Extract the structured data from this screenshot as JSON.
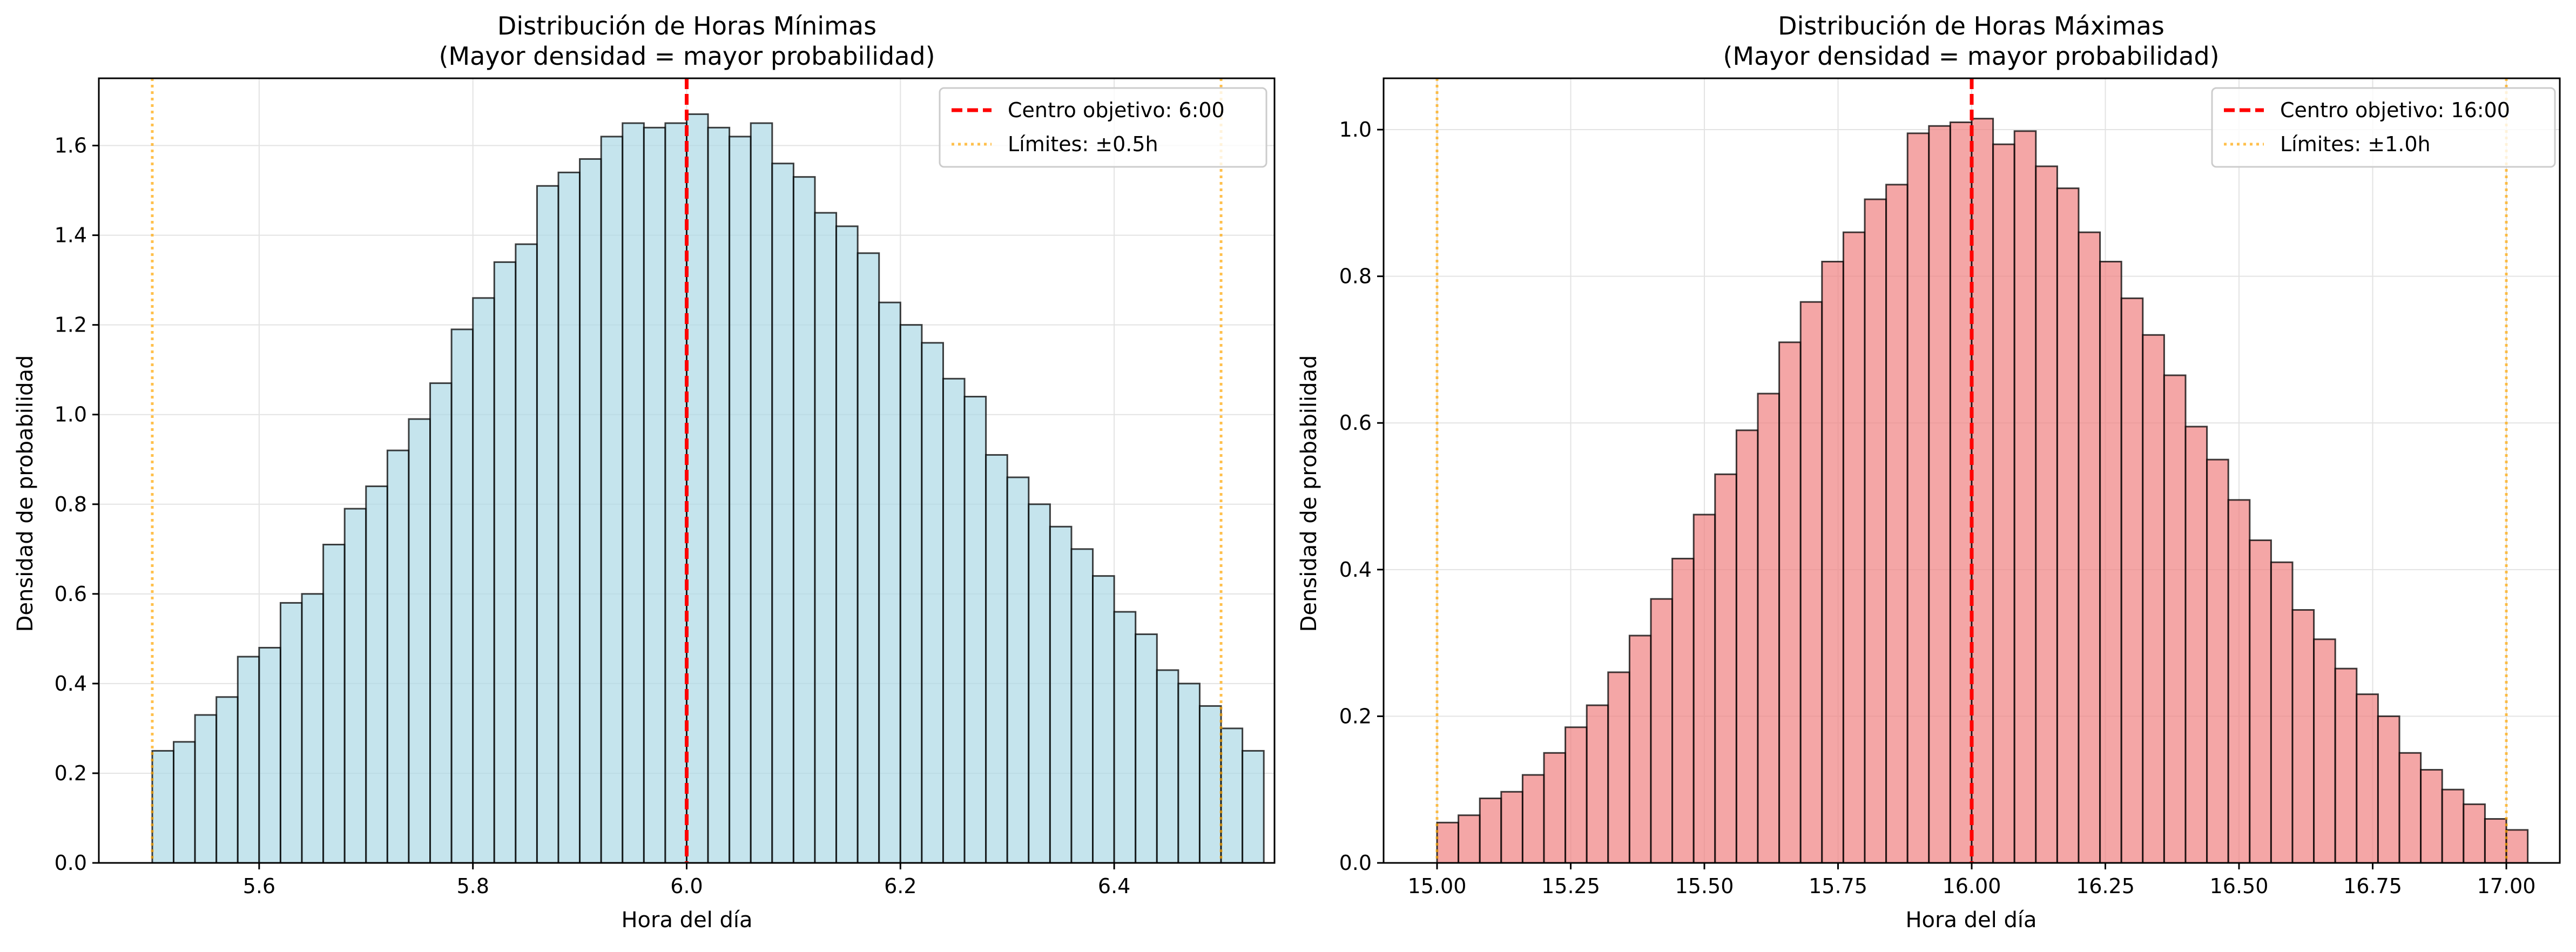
{
  "chart_data": [
    {
      "type": "bar",
      "title": "Distribución de Horas Mínimas",
      "subtitle": "(Mayor densidad = mayor probabilidad)",
      "xlabel": "Hora del día",
      "ylabel": "Densidad de probabilidad",
      "xlim": [
        5.45,
        6.55
      ],
      "ylim": [
        0,
        1.75
      ],
      "xticks": [
        5.6,
        5.8,
        6.0,
        6.2,
        6.4
      ],
      "xtick_labels": [
        "5.6",
        "5.8",
        "6.0",
        "6.2",
        "6.4"
      ],
      "yticks": [
        0,
        0.2,
        0.4,
        0.6,
        0.8,
        1.0,
        1.2,
        1.4,
        1.6
      ],
      "ytick_labels": [
        "0.0",
        "0.2",
        "0.4",
        "0.6",
        "0.8",
        "1.0",
        "1.2",
        "1.4",
        "1.6"
      ],
      "bin_start": 5.5,
      "bin_width": 0.02,
      "values": [
        0.25,
        0.27,
        0.33,
        0.37,
        0.46,
        0.48,
        0.58,
        0.6,
        0.71,
        0.79,
        0.84,
        0.92,
        0.99,
        1.07,
        1.19,
        1.26,
        1.34,
        1.38,
        1.51,
        1.54,
        1.57,
        1.62,
        1.65,
        1.64,
        1.65,
        1.67,
        1.64,
        1.62,
        1.65,
        1.56,
        1.53,
        1.45,
        1.42,
        1.36,
        1.25,
        1.2,
        1.16,
        1.08,
        1.04,
        0.91,
        0.86,
        0.8,
        0.75,
        0.7,
        0.64,
        0.56,
        0.51,
        0.43,
        0.4,
        0.35,
        0.3,
        0.25
      ],
      "bar_color": "#add8e6",
      "reference_lines": [
        {
          "name": "Centro objetivo: 6:00",
          "x": 6.0,
          "color": "#ff0000",
          "style": "dashed"
        },
        {
          "name": "Límites: ±0.5h",
          "x": [
            5.5,
            6.5
          ],
          "color": "#ffa500",
          "style": "dotted"
        }
      ],
      "legend_position": "top-right",
      "grid": true
    },
    {
      "type": "bar",
      "title": "Distribución de Horas Máximas",
      "subtitle": "(Mayor densidad = mayor probabilidad)",
      "xlabel": "Hora del día",
      "ylabel": "Densidad de probabilidad",
      "xlim": [
        14.9,
        17.1
      ],
      "ylim": [
        0,
        1.07
      ],
      "xticks": [
        15.0,
        15.25,
        15.5,
        15.75,
        16.0,
        16.25,
        16.5,
        16.75,
        17.0
      ],
      "xtick_labels": [
        "15.00",
        "15.25",
        "15.50",
        "15.75",
        "16.00",
        "16.25",
        "16.50",
        "16.75",
        "17.00"
      ],
      "yticks": [
        0,
        0.2,
        0.4,
        0.6,
        0.8,
        1.0
      ],
      "ytick_labels": [
        "0.0",
        "0.2",
        "0.4",
        "0.6",
        "0.8",
        "1.0"
      ],
      "bin_start": 15.0,
      "bin_width": 0.04,
      "values": [
        0.055,
        0.065,
        0.088,
        0.097,
        0.12,
        0.15,
        0.185,
        0.215,
        0.26,
        0.31,
        0.36,
        0.415,
        0.475,
        0.53,
        0.59,
        0.64,
        0.71,
        0.765,
        0.82,
        0.86,
        0.905,
        0.925,
        0.995,
        1.005,
        1.01,
        1.015,
        0.98,
        0.998,
        0.95,
        0.92,
        0.86,
        0.82,
        0.77,
        0.72,
        0.665,
        0.595,
        0.55,
        0.495,
        0.44,
        0.41,
        0.345,
        0.305,
        0.265,
        0.23,
        0.2,
        0.15,
        0.127,
        0.1,
        0.08,
        0.06,
        0.045
      ],
      "bar_color": "#f08080",
      "reference_lines": [
        {
          "name": "Centro objetivo: 16:00",
          "x": 16.0,
          "color": "#ff0000",
          "style": "dashed"
        },
        {
          "name": "Límites: ±1.0h",
          "x": [
            15.0,
            17.0
          ],
          "color": "#ffa500",
          "style": "dotted"
        }
      ],
      "legend_position": "top-right",
      "grid": true
    }
  ]
}
